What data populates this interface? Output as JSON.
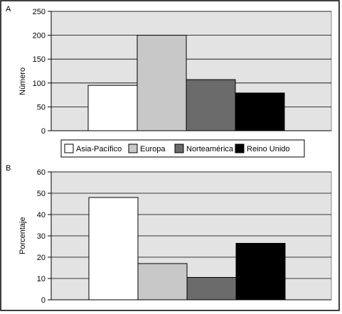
{
  "colors": {
    "Asia-Pacífico": "#ffffff",
    "Europa": "#c8c8c8",
    "Norteamérica": "#6b6b6b",
    "Reino Unido": "#000000"
  },
  "legend": {
    "items": [
      "Asia-Pacífico",
      "Europa",
      "Norteamérica",
      "Reino Unido"
    ],
    "placement": "between-panels"
  },
  "chart_data": [
    {
      "type": "bar",
      "panel_label": "A",
      "title": "",
      "xlabel": "",
      "ylabel": "Número",
      "categories": [
        "Asia-Pacífico",
        "Europa",
        "Norteamérica",
        "Reino Unido"
      ],
      "values": [
        95,
        200,
        107,
        79
      ],
      "ylim": [
        0,
        250
      ],
      "yticks": [
        0,
        50,
        100,
        150,
        200,
        250
      ],
      "grid": true
    },
    {
      "type": "bar",
      "panel_label": "B",
      "title": "",
      "xlabel": "",
      "ylabel": "Porcentaje",
      "categories": [
        "Asia-Pacífico",
        "Europa",
        "Norteamérica",
        "Reino Unido"
      ],
      "values": [
        48,
        17,
        10.5,
        26.5
      ],
      "ylim": [
        0,
        60
      ],
      "yticks": [
        0,
        10,
        20,
        30,
        40,
        50,
        60
      ],
      "grid": true
    }
  ]
}
